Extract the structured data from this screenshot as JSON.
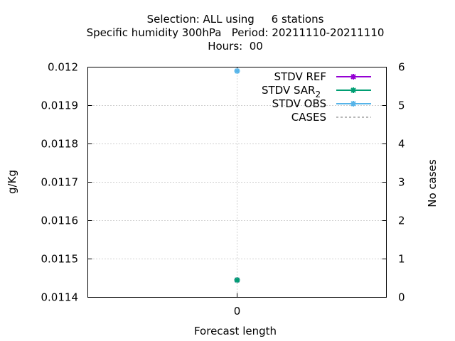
{
  "chart_data": {
    "type": "scatter",
    "title_lines": [
      "Selection: ALL using     6 stations",
      "Specific humidity 300hPa   Period: 20211110-20211110",
      "Hours:  00"
    ],
    "xlabel": "Forecast length",
    "ylabel": "g/Kg",
    "y2label": "No cases",
    "x_ticks": [
      "0"
    ],
    "ylim": [
      0.0114,
      0.012
    ],
    "y_ticks": [
      "0.0114",
      "0.0115",
      "0.0116",
      "0.0117",
      "0.0118",
      "0.0119",
      "0.012"
    ],
    "y2lim": [
      0,
      6
    ],
    "y2_ticks": [
      "0",
      "1",
      "2",
      "3",
      "4",
      "5",
      "6"
    ],
    "grid": true,
    "legend_position": "top-right",
    "series": [
      {
        "name": "STDV REF",
        "color": "#9400d3",
        "marker": "star",
        "axis": "y",
        "points": [
          {
            "x": 0,
            "y": 0.011445
          }
        ]
      },
      {
        "name": "STDV SAR",
        "name_subscript": "2",
        "color": "#009e73",
        "marker": "star",
        "axis": "y",
        "points": [
          {
            "x": 0,
            "y": 0.011445
          }
        ]
      },
      {
        "name": "STDV OBS",
        "color": "#56b4e9",
        "marker": "star",
        "axis": "y",
        "points": [
          {
            "x": 0,
            "y": 0.01199
          }
        ]
      },
      {
        "name": "CASES",
        "color": "#a0a0a0",
        "marker": "none",
        "dashed": true,
        "axis": "y2",
        "points": []
      }
    ]
  }
}
